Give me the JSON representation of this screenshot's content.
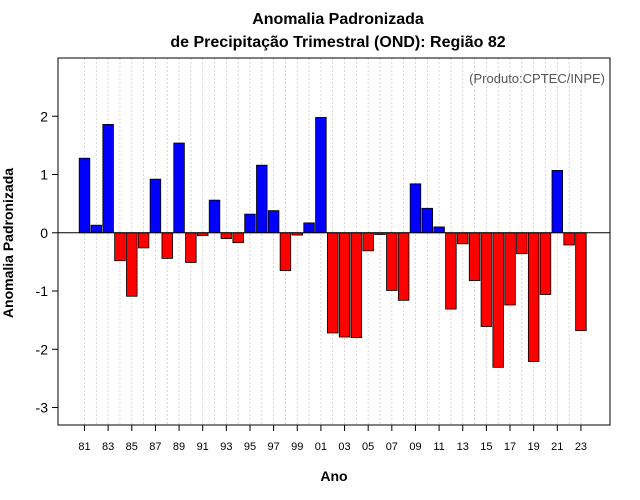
{
  "chart_data": {
    "type": "bar",
    "title": "Anomalia Padronizada",
    "subtitle": "de Precipitação Trimestral (OND): Região 82",
    "xlabel": "Ano",
    "ylabel": "Anomalia Padronizada",
    "source_note": "(Produto:CPTEC/INPE)",
    "ylim": [
      -3.3,
      3.0
    ],
    "yticks": [
      -3,
      -2,
      -1,
      0,
      1,
      2
    ],
    "ytick_labels": [
      "-3",
      "-2",
      "-1",
      "0",
      "1",
      "2"
    ],
    "categories": [
      "81",
      "82",
      "83",
      "84",
      "85",
      "86",
      "87",
      "88",
      "89",
      "90",
      "91",
      "92",
      "93",
      "94",
      "95",
      "96",
      "97",
      "98",
      "99",
      "00",
      "01",
      "02",
      "03",
      "04",
      "05",
      "06",
      "07",
      "08",
      "09",
      "10",
      "11",
      "12",
      "13",
      "14",
      "15",
      "16",
      "17",
      "18",
      "19",
      "20",
      "21",
      "22",
      "23"
    ],
    "xtick_labels": [
      "81",
      "83",
      "85",
      "87",
      "89",
      "91",
      "93",
      "95",
      "97",
      "99",
      "01",
      "03",
      "05",
      "07",
      "09",
      "11",
      "13",
      "15",
      "17",
      "19",
      "21",
      "23"
    ],
    "values": [
      1.28,
      0.13,
      1.86,
      -0.48,
      -1.09,
      -0.26,
      0.92,
      -0.44,
      1.54,
      -0.51,
      -0.05,
      0.56,
      -0.1,
      -0.17,
      0.32,
      1.16,
      0.38,
      -0.65,
      -0.04,
      0.17,
      1.98,
      -1.72,
      -1.79,
      -1.8,
      -0.31,
      -0.03,
      -0.99,
      -1.16,
      0.84,
      0.42,
      0.1,
      -1.31,
      -0.19,
      -0.82,
      -1.61,
      -2.31,
      -1.24,
      -0.36,
      -2.21,
      -1.06,
      1.07,
      -0.21,
      -1.68
    ],
    "colors": {
      "positive": "#0000ff",
      "negative": "#ff0000",
      "bar_outline": "#000000",
      "zero_line": "#000000",
      "grid": "#cccccc"
    },
    "grid": true
  }
}
